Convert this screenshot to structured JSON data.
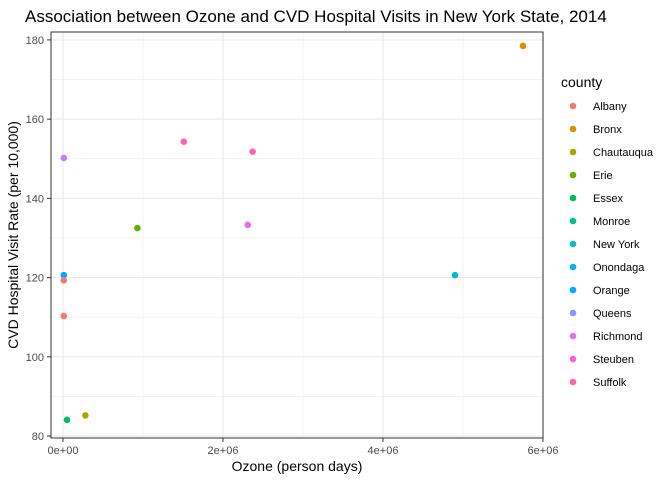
{
  "chart_data": {
    "type": "scatter",
    "title": "Association between Ozone and CVD Hospital Visits in New York State, 2014",
    "xlabel": "Ozone (person days)",
    "ylabel": "CVD Hospital Visit Rate (per 10,000)",
    "xlim": [
      -150000,
      6000000
    ],
    "ylim": [
      79.5,
      182
    ],
    "x_ticks": [
      {
        "value": 0,
        "label": "0e+00"
      },
      {
        "value": 2000000,
        "label": "2e+06"
      },
      {
        "value": 4000000,
        "label": "4e+06"
      },
      {
        "value": 6000000,
        "label": "6e+06"
      }
    ],
    "y_ticks": [
      {
        "value": 80,
        "label": "80"
      },
      {
        "value": 100,
        "label": "100"
      },
      {
        "value": 120,
        "label": "120"
      },
      {
        "value": 140,
        "label": "140"
      },
      {
        "value": 160,
        "label": "160"
      },
      {
        "value": 180,
        "label": "180"
      }
    ],
    "grid": true,
    "legend": {
      "title": "county",
      "placement": "right"
    },
    "series": [
      {
        "name": "Albany",
        "color": "#F8766D",
        "points": [
          {
            "x": 10000,
            "y": 110.3
          }
        ]
      },
      {
        "name": "Bronx",
        "color": "#DB8E00",
        "points": [
          {
            "x": 5750000,
            "y": 178.5
          }
        ]
      },
      {
        "name": "Chautauqua",
        "color": "#AEA200",
        "points": [
          {
            "x": 280000,
            "y": 85.2
          }
        ]
      },
      {
        "name": "Erie",
        "color": "#64B200",
        "points": [
          {
            "x": 930000,
            "y": 132.5
          }
        ]
      },
      {
        "name": "Essex",
        "color": "#00BD5C",
        "points": [
          {
            "x": 50000,
            "y": 84.1
          }
        ]
      },
      {
        "name": "Monroe",
        "color": "#00C1A7",
        "points": []
      },
      {
        "name": "New York",
        "color": "#00BADE",
        "points": [
          {
            "x": 4900000,
            "y": 120.6
          }
        ]
      },
      {
        "name": "Onondaga",
        "color": "#00A6FF",
        "points": [
          {
            "x": 10000,
            "y": 120.6
          }
        ]
      },
      {
        "name": "Orange",
        "color": "#B385FF",
        "points": [
          {
            "x": 10000,
            "y": 150.2
          }
        ]
      },
      {
        "name": "Queens",
        "color": "#EF67EB",
        "points": [
          {
            "x": 2310000,
            "y": 133.3
          }
        ]
      },
      {
        "name": "Richmond",
        "color": "#FF63B6",
        "points": [
          {
            "x": 2370000,
            "y": 151.8
          }
        ]
      },
      {
        "name": "Steuben",
        "color": "#F8766D",
        "points": [
          {
            "x": 10000,
            "y": 119.3
          }
        ]
      },
      {
        "name": "Suffolk",
        "color": "#FF63B6",
        "points": [
          {
            "x": 1510000,
            "y": 154.3
          }
        ]
      }
    ],
    "legend_colors": [
      "#F8766D",
      "#DB8E00",
      "#AEA200",
      "#64B200",
      "#00BD5C",
      "#00C08B",
      "#00BFC4",
      "#00B4F0",
      "#00A9FF",
      "#8B93FF",
      "#DF70F8",
      "#FB61D7",
      "#FF66A8"
    ]
  }
}
